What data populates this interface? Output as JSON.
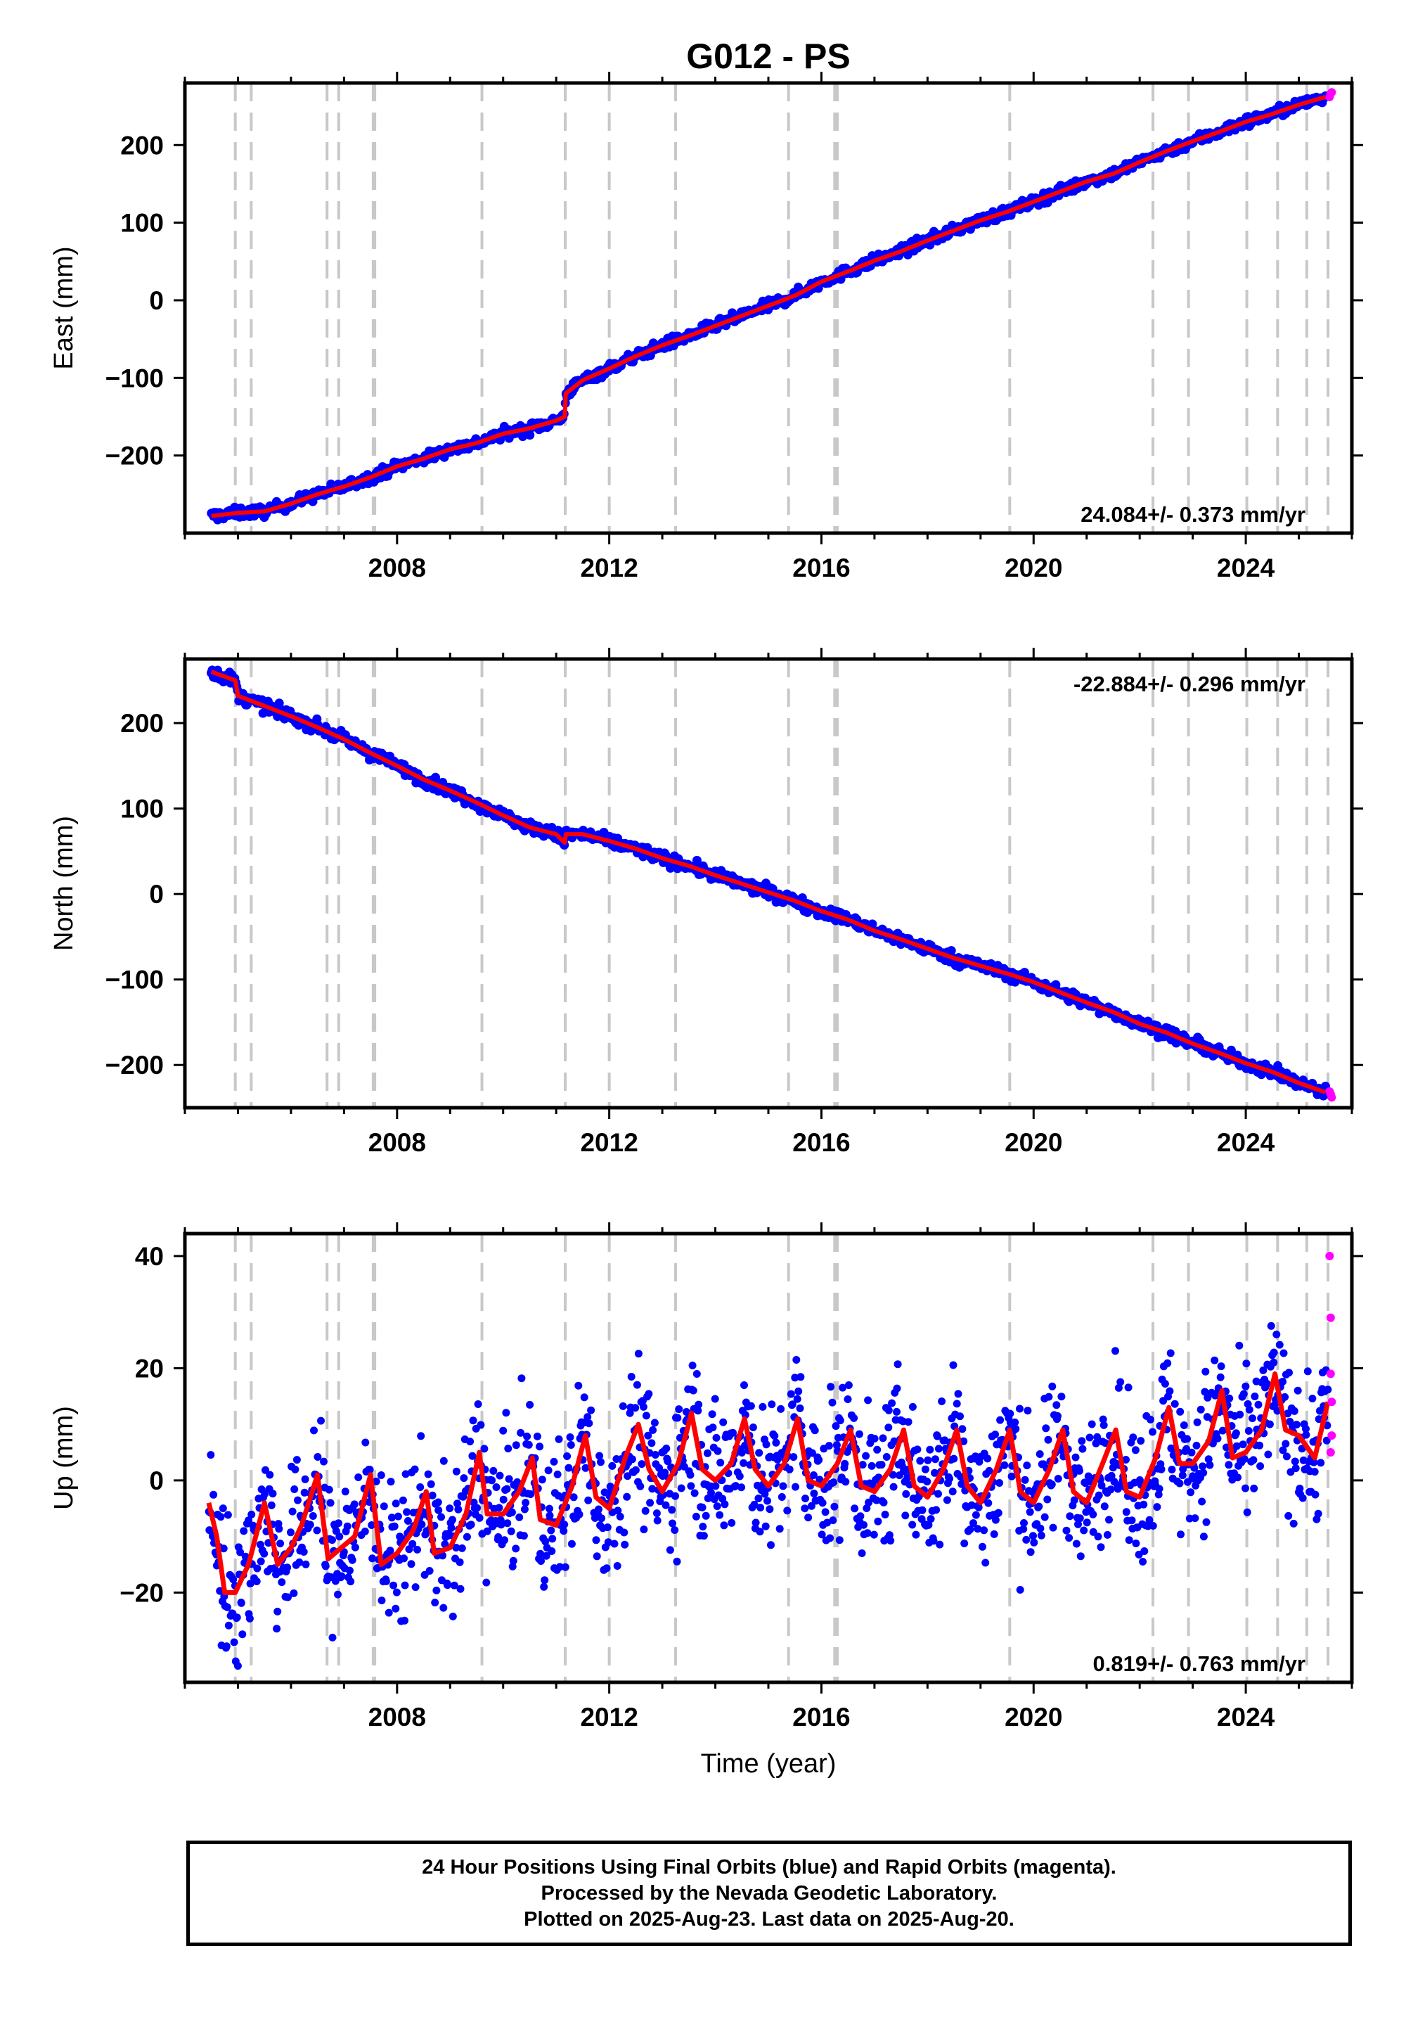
{
  "title": "G012 - PS",
  "colors": {
    "final_points": "#0000ff",
    "rapid_points": "#ff00ff",
    "model_line": "#ff0000",
    "event_lines": "#c8c8c8"
  },
  "event_dates": [
    2004.95,
    2005.25,
    2006.68,
    2006.9,
    2007.55,
    2007.58,
    2009.6,
    2011.17,
    2012.0,
    2013.25,
    2015.38,
    2016.25,
    2016.3,
    2019.55,
    2022.25,
    2022.92,
    2024.02,
    2024.6,
    2025.15,
    2025.55
  ],
  "footer": {
    "line1": "24 Hour Positions Using Final Orbits (blue) and Rapid Orbits (magenta).",
    "line2": "Processed by the Nevada Geodetic Laboratory.",
    "line3": "Plotted on 2025-Aug-23. Last data on 2025-Aug-20."
  },
  "chart_data": [
    {
      "type": "scatter",
      "component": "east",
      "ylabel": "East (mm)",
      "xlabel": "",
      "xlim": [
        2004.0,
        2026.0
      ],
      "ylim": [
        -300,
        280
      ],
      "xticks": [
        2008,
        2012,
        2016,
        2020,
        2024
      ],
      "yticks": [
        -200,
        -100,
        0,
        100,
        200
      ],
      "rate_text": "24.084+/- 0.373 mm/yr",
      "series": [
        {
          "name": "Final Orbits",
          "x": [
            2004.5,
            2005.0,
            2005.5,
            2006.0,
            2006.5,
            2007.0,
            2007.5,
            2008.0,
            2008.5,
            2009.0,
            2009.5,
            2010.0,
            2010.5,
            2011.0,
            2011.16,
            2011.18,
            2011.5,
            2012.0,
            2012.5,
            2013.0,
            2013.5,
            2014.0,
            2014.5,
            2015.0,
            2015.5,
            2016.0,
            2016.5,
            2017.0,
            2017.5,
            2018.0,
            2018.5,
            2019.0,
            2019.5,
            2020.0,
            2020.5,
            2021.0,
            2021.5,
            2022.0,
            2022.5,
            2023.0,
            2023.5,
            2024.0,
            2024.5,
            2025.0,
            2025.5
          ],
          "y": [
            -278,
            -274,
            -272,
            -262,
            -250,
            -240,
            -228,
            -214,
            -204,
            -192,
            -184,
            -172,
            -165,
            -155,
            -150,
            -120,
            -103,
            -88,
            -72,
            -58,
            -46,
            -33,
            -20,
            -7,
            6,
            24,
            37,
            51,
            63,
            77,
            90,
            103,
            114,
            127,
            140,
            153,
            163,
            178,
            192,
            205,
            217,
            230,
            240,
            252,
            262
          ]
        },
        {
          "name": "Rapid Orbits",
          "x": [
            2025.58,
            2025.6,
            2025.62
          ],
          "y": [
            262,
            266,
            268
          ]
        }
      ]
    },
    {
      "type": "scatter",
      "component": "north",
      "ylabel": "North (mm)",
      "xlabel": "",
      "xlim": [
        2004.0,
        2026.0
      ],
      "ylim": [
        -250,
        275
      ],
      "xticks": [
        2008,
        2012,
        2016,
        2020,
        2024
      ],
      "yticks": [
        -200,
        -100,
        0,
        100,
        200
      ],
      "rate_text": "-22.884+/- 0.296 mm/yr",
      "series": [
        {
          "name": "Final Orbits",
          "x": [
            2004.5,
            2004.95,
            2005.0,
            2005.5,
            2006.0,
            2006.5,
            2007.0,
            2007.5,
            2008.0,
            2008.5,
            2009.0,
            2009.5,
            2010.0,
            2010.5,
            2011.0,
            2011.16,
            2011.18,
            2011.5,
            2012.0,
            2012.5,
            2013.0,
            2013.5,
            2014.0,
            2014.5,
            2015.0,
            2015.5,
            2016.0,
            2016.5,
            2017.0,
            2017.5,
            2018.0,
            2018.5,
            2019.0,
            2019.5,
            2020.0,
            2020.5,
            2021.0,
            2021.5,
            2022.0,
            2022.5,
            2023.0,
            2023.5,
            2024.0,
            2024.5,
            2025.0,
            2025.5
          ],
          "y": [
            260,
            250,
            232,
            220,
            208,
            195,
            181,
            165,
            150,
            134,
            121,
            107,
            92,
            78,
            70,
            60,
            70,
            70,
            62,
            53,
            42,
            33,
            22,
            12,
            2,
            -8,
            -20,
            -30,
            -43,
            -53,
            -64,
            -75,
            -84,
            -93,
            -103,
            -115,
            -127,
            -138,
            -152,
            -162,
            -175,
            -186,
            -198,
            -208,
            -221,
            -232
          ]
        },
        {
          "name": "Rapid Orbits",
          "x": [
            2025.58,
            2025.6,
            2025.62
          ],
          "y": [
            -231,
            -234,
            -238
          ]
        }
      ]
    },
    {
      "type": "scatter",
      "component": "up",
      "ylabel": "Up (mm)",
      "xlabel": "Time (year)",
      "xlim": [
        2004.0,
        2026.0
      ],
      "ylim": [
        -36,
        44
      ],
      "xticks": [
        2008,
        2012,
        2016,
        2020,
        2024
      ],
      "yticks": [
        -20,
        0,
        20,
        40
      ],
      "rate_text": "0.819+/- 0.763 mm/yr",
      "series": [
        {
          "name": "Final Orbits Model",
          "x": [
            2004.45,
            2004.6,
            2004.75,
            2004.95,
            2005.2,
            2005.5,
            2005.75,
            2006.0,
            2006.2,
            2006.5,
            2006.7,
            2006.95,
            2007.2,
            2007.5,
            2007.7,
            2008.0,
            2008.3,
            2008.55,
            2008.7,
            2009.0,
            2009.3,
            2009.55,
            2009.7,
            2010.0,
            2010.3,
            2010.55,
            2010.7,
            2011.0,
            2011.3,
            2011.55,
            2011.75,
            2012.0,
            2012.3,
            2012.55,
            2012.75,
            2013.0,
            2013.3,
            2013.55,
            2013.75,
            2014.0,
            2014.3,
            2014.55,
            2014.75,
            2015.0,
            2015.3,
            2015.55,
            2015.75,
            2016.0,
            2016.3,
            2016.55,
            2016.75,
            2017.0,
            2017.3,
            2017.55,
            2017.75,
            2018.0,
            2018.3,
            2018.55,
            2018.75,
            2019.0,
            2019.3,
            2019.55,
            2019.75,
            2020.0,
            2020.3,
            2020.55,
            2020.75,
            2021.0,
            2021.3,
            2021.55,
            2021.75,
            2022.0,
            2022.3,
            2022.55,
            2022.75,
            2023.0,
            2023.3,
            2023.55,
            2023.75,
            2024.0,
            2024.3,
            2024.55,
            2024.75,
            2025.0,
            2025.3,
            2025.55
          ],
          "y": [
            -4,
            -10,
            -20,
            -20,
            -15,
            -4,
            -15,
            -12,
            -8,
            1,
            -14,
            -12,
            -10,
            1,
            -15,
            -13,
            -9,
            -2,
            -13,
            -12,
            -6,
            5,
            -6,
            -6,
            -2,
            4,
            -7,
            -8,
            -1,
            8,
            -3,
            -5,
            4,
            10,
            2,
            -2,
            3,
            12,
            2,
            0,
            3,
            11,
            2,
            -1,
            3,
            11,
            0,
            -1,
            3,
            9,
            -1,
            -2,
            2,
            9,
            -1,
            -3,
            2,
            9,
            -1,
            -4,
            2,
            9,
            -2,
            -4,
            2,
            9,
            -2,
            -4,
            3,
            9,
            -2,
            -3,
            4,
            13,
            3,
            3,
            7,
            16,
            4,
            5,
            9,
            19,
            9,
            8,
            4,
            14
          ]
        },
        {
          "name": "Rapid Orbits",
          "x": [
            2025.58,
            2025.6,
            2025.6,
            2025.62,
            2025.62,
            2025.6
          ],
          "y": [
            40,
            29,
            19,
            14,
            8,
            5
          ]
        }
      ]
    }
  ]
}
